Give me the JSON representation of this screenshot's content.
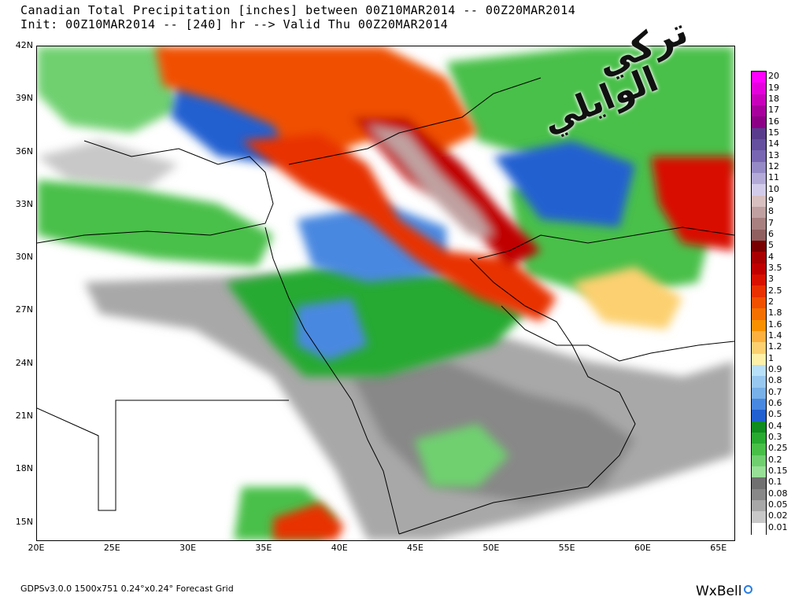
{
  "header": {
    "line1": "Canadian Total Precipitation [inches] between 00Z10MAR2014 -- 00Z20MAR2014",
    "line2": "Init: 00Z10MAR2014 -- [240] hr --> Valid Thu 00Z20MAR2014"
  },
  "map": {
    "lat_ticks": [
      "42N",
      "39N",
      "36N",
      "33N",
      "30N",
      "27N",
      "24N",
      "21N",
      "18N",
      "15N"
    ],
    "lon_ticks": [
      "20E",
      "25E",
      "30E",
      "35E",
      "40E",
      "45E",
      "50E",
      "55E",
      "60E",
      "65E"
    ],
    "lat_range": [
      14,
      42
    ],
    "lon_range": [
      20,
      66
    ]
  },
  "legend": {
    "labels": [
      "20",
      "19",
      "18",
      "17",
      "16",
      "15",
      "14",
      "13",
      "12",
      "11",
      "10",
      "9",
      "8",
      "7",
      "6",
      "5",
      "4",
      "3.5",
      "3",
      "2.5",
      "2",
      "1.8",
      "1.6",
      "1.4",
      "1.2",
      "1",
      "0.9",
      "0.8",
      "0.7",
      "0.6",
      "0.5",
      "0.4",
      "0.3",
      "0.25",
      "0.2",
      "0.15",
      "0.1",
      "0.08",
      "0.05",
      "0.02",
      "0.01"
    ],
    "colors": [
      "#ff00ff",
      "#e400dc",
      "#c800bc",
      "#a8009c",
      "#8c0086",
      "#5a3c8c",
      "#64509e",
      "#7866b2",
      "#968ac6",
      "#b4aad8",
      "#d2ccea",
      "#d8c0c0",
      "#c0a0a0",
      "#a88080",
      "#906060",
      "#780000",
      "#a80000",
      "#c00000",
      "#d81000",
      "#e83000",
      "#f05000",
      "#f47000",
      "#f89000",
      "#fcb040",
      "#fcd070",
      "#fff0a8",
      "#b8e0f8",
      "#98c8f0",
      "#78b0e8",
      "#4888e0",
      "#2060d0",
      "#108c20",
      "#28aa30",
      "#48c048",
      "#70d070",
      "#98e098",
      "#707070",
      "#888888",
      "#a8a8a8",
      "#c8c8c8",
      "#ffffff"
    ]
  },
  "footer": {
    "left": "GDPSv3.0.0  1500x751  0.24°x0.24°  Forecast Grid",
    "right": "WxBell"
  },
  "watermark": {
    "line1": "تركي",
    "line2": "الوايلي"
  }
}
